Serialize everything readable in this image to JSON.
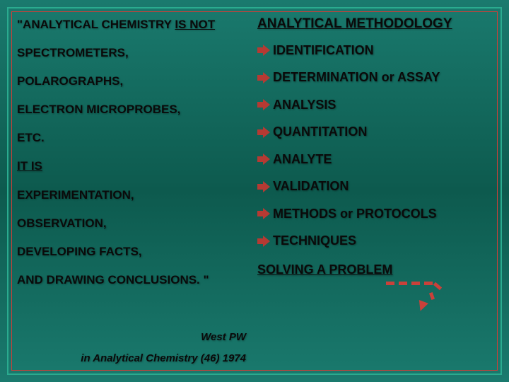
{
  "left": {
    "line1_prefix": "\"ANALYTICAL CHEMISTRY ",
    "line1_under": "IS NOT",
    "line2": "SPECTROMETERS,",
    "line3": "POLAROGRAPHS,",
    "line4": "ELECTRON MICROPROBES,",
    "line5": "ETC.",
    "line6_under": "IT IS",
    "line7": "EXPERIMENTATION,",
    "line8": "OBSERVATION,",
    "line9": "DEVELOPING FACTS,",
    "line10": "AND DRAWING CONCLUSIONS. \"",
    "cite1": "West PW",
    "cite2": "in Analytical Chemistry (46) 1974"
  },
  "right": {
    "title": "ANALYTICAL METHODOLOGY",
    "items": [
      "IDENTIFICATION",
      "DETERMINATION or ASSAY",
      "ANALYSIS",
      "QUANTITATION",
      "ANALYTE",
      "VALIDATION",
      "METHODS or PROTOCOLS",
      "TECHNIQUES"
    ],
    "final": "SOLVING A PROBLEM"
  },
  "style": {
    "bg_gradient": [
      "#1a7a6e",
      "#0d5a4e"
    ],
    "border_outer": "#2aab8f",
    "border_inner": "#c9413a",
    "text_color": "#0a0a0a",
    "arrow_color": "#b53a33",
    "left_fontsize": 17,
    "right_fontsize": 18,
    "title_fontsize": 19,
    "font_weight": "bold"
  }
}
